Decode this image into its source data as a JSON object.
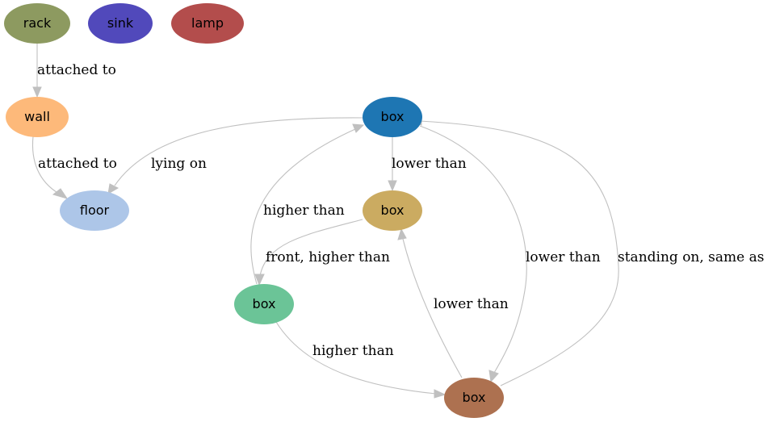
{
  "nodes": [
    {
      "id": "rack",
      "label": "rack",
      "color": "#8d9a60"
    },
    {
      "id": "sink",
      "label": "sink",
      "color": "#5149bb"
    },
    {
      "id": "lamp",
      "label": "lamp",
      "color": "#b34d4c"
    },
    {
      "id": "wall",
      "label": "wall",
      "color": "#fdb97a"
    },
    {
      "id": "floor",
      "label": "floor",
      "color": "#adc6e8"
    },
    {
      "id": "box1",
      "label": "box",
      "color": "#1e76b3"
    },
    {
      "id": "box2",
      "label": "box",
      "color": "#cbab61"
    },
    {
      "id": "box3",
      "label": "box",
      "color": "#6bc497"
    },
    {
      "id": "box4",
      "label": "box",
      "color": "#ad7150"
    }
  ],
  "edges": [
    {
      "id": "rack-wall",
      "from": "rack",
      "to": "wall",
      "label": "attached to"
    },
    {
      "id": "wall-floor",
      "from": "wall",
      "to": "floor",
      "label": "attached to"
    },
    {
      "id": "box1-floor",
      "from": "box1",
      "to": "floor",
      "label": "lying on"
    },
    {
      "id": "box1-box2",
      "from": "box1",
      "to": "box2",
      "label": "lower than"
    },
    {
      "id": "box3-box1",
      "from": "box3",
      "to": "box1",
      "label": "higher than"
    },
    {
      "id": "box2-box3",
      "from": "box2",
      "to": "box3",
      "label": "front, higher than"
    },
    {
      "id": "box1-box4",
      "from": "box1",
      "to": "box4",
      "label": "lower than"
    },
    {
      "id": "box4-box1",
      "from": "box4",
      "to": "box1",
      "label": "standing on, same as"
    },
    {
      "id": "box4-box2",
      "from": "box4",
      "to": "box2",
      "label": "lower than"
    },
    {
      "id": "box3-box4",
      "from": "box3",
      "to": "box4",
      "label": "higher than"
    }
  ]
}
